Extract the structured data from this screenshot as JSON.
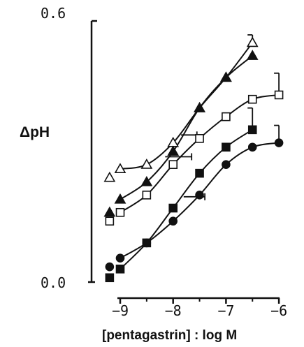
{
  "chart_data": {
    "type": "scatter",
    "title": "",
    "xlabel": "[pentagastrin] : log M",
    "ylabel": "ΔpH",
    "xlim": [
      -9.2,
      -5.95
    ],
    "ylim": [
      0.0,
      0.6
    ],
    "grid": false,
    "legend": "none",
    "x_ticks": [
      -9,
      -8,
      -7,
      -6
    ],
    "x_tick_labels": [
      "−9",
      "−8",
      "−7",
      "−6"
    ],
    "y_ticks": [
      0.0,
      0.6
    ],
    "y_tick_labels": [
      "0.0",
      "0.6"
    ],
    "series": [
      {
        "marker": "open-triangle",
        "points": [
          {
            "x": -9.2,
            "y": 0.24,
            "err": 0
          },
          {
            "x": -9.0,
            "y": 0.26,
            "err": 0
          },
          {
            "x": -8.5,
            "y": 0.27,
            "err": 0
          },
          {
            "x": -8.0,
            "y": 0.32,
            "err": 0
          },
          {
            "x": -7.5,
            "y": 0.4,
            "err": 0
          },
          {
            "x": -7.0,
            "y": 0.47,
            "err": 0
          },
          {
            "x": -6.5,
            "y": 0.55,
            "err": 0.018
          }
        ],
        "x_error": [
          {
            "x": -7.7,
            "y": 0.338,
            "dx": 0.15
          }
        ]
      },
      {
        "marker": "filled-triangle",
        "points": [
          {
            "x": -9.2,
            "y": 0.16,
            "err": 0
          },
          {
            "x": -9.0,
            "y": 0.19,
            "err": 0
          },
          {
            "x": -8.5,
            "y": 0.23,
            "err": 0
          },
          {
            "x": -8.0,
            "y": 0.3,
            "err": 0
          },
          {
            "x": -7.5,
            "y": 0.4,
            "err": 0
          },
          {
            "x": -7.0,
            "y": 0.47,
            "err": 0
          },
          {
            "x": -6.5,
            "y": 0.52,
            "err": 0
          }
        ],
        "x_error": [
          {
            "x": -7.9,
            "y": 0.288,
            "dx": 0.25
          }
        ]
      },
      {
        "marker": "open-square",
        "points": [
          {
            "x": -9.2,
            "y": 0.14,
            "err": 0
          },
          {
            "x": -9.0,
            "y": 0.16,
            "err": 0
          },
          {
            "x": -8.5,
            "y": 0.2,
            "err": 0
          },
          {
            "x": -8.0,
            "y": 0.27,
            "err": 0
          },
          {
            "x": -7.5,
            "y": 0.33,
            "err": 0
          },
          {
            "x": -7.0,
            "y": 0.38,
            "err": 0
          },
          {
            "x": -6.5,
            "y": 0.42,
            "err": 0
          },
          {
            "x": -6.0,
            "y": 0.43,
            "err": 0.05
          }
        ]
      },
      {
        "marker": "filled-square",
        "points": [
          {
            "x": -9.2,
            "y": 0.01,
            "err": 0
          },
          {
            "x": -9.0,
            "y": 0.03,
            "err": 0
          },
          {
            "x": -8.5,
            "y": 0.09,
            "err": 0
          },
          {
            "x": -8.0,
            "y": 0.17,
            "err": 0
          },
          {
            "x": -7.5,
            "y": 0.25,
            "err": 0
          },
          {
            "x": -7.0,
            "y": 0.31,
            "err": 0
          },
          {
            "x": -6.5,
            "y": 0.35,
            "err": 0.05
          }
        ],
        "x_error": [
          {
            "x": -7.6,
            "y": 0.196,
            "dx": 0.2
          }
        ]
      },
      {
        "marker": "filled-circle",
        "points": [
          {
            "x": -9.2,
            "y": 0.035,
            "err": 0
          },
          {
            "x": -9.0,
            "y": 0.055,
            "err": 0
          },
          {
            "x": -8.5,
            "y": 0.09,
            "err": 0
          },
          {
            "x": -8.0,
            "y": 0.14,
            "err": 0
          },
          {
            "x": -7.5,
            "y": 0.2,
            "err": 0
          },
          {
            "x": -7.0,
            "y": 0.27,
            "err": 0
          },
          {
            "x": -6.5,
            "y": 0.31,
            "err": 0
          },
          {
            "x": -6.0,
            "y": 0.32,
            "err": 0.04
          }
        ]
      }
    ]
  }
}
